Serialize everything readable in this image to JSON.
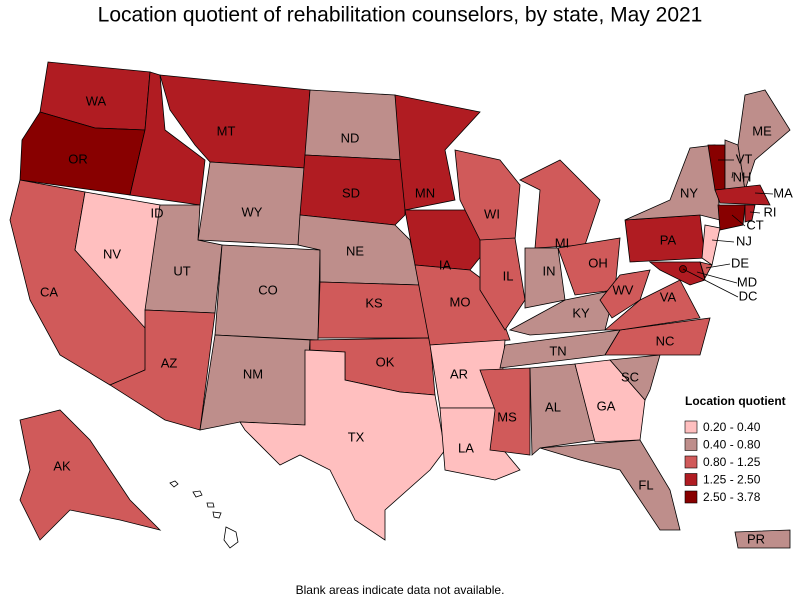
{
  "title": "Location quotient of rehabilitation counselors, by state, May 2021",
  "footnote": "Blank areas indicate data not available.",
  "legend": {
    "title": "Location quotient",
    "items": [
      {
        "label": "0.20 - 0.40",
        "color": "#ffbfbf"
      },
      {
        "label": "0.40 - 0.80",
        "color": "#be8e8b"
      },
      {
        "label": "0.80 - 1.25",
        "color": "#d05a5a"
      },
      {
        "label": "1.25 - 2.50",
        "color": "#b01c22"
      },
      {
        "label": "2.50 - 3.78",
        "color": "#880000"
      }
    ]
  },
  "states": [
    {
      "label": "WA",
      "range": "1.25 - 2.50"
    },
    {
      "label": "OR",
      "range": "2.50 - 3.78"
    },
    {
      "label": "CA",
      "range": "0.80 - 1.25"
    },
    {
      "label": "NV",
      "range": "0.20 - 0.40"
    },
    {
      "label": "ID",
      "range": "1.25 - 2.50"
    },
    {
      "label": "MT",
      "range": "1.25 - 2.50"
    },
    {
      "label": "WY",
      "range": "0.40 - 0.80"
    },
    {
      "label": "UT",
      "range": "0.40 - 0.80"
    },
    {
      "label": "AZ",
      "range": "0.80 - 1.25"
    },
    {
      "label": "CO",
      "range": "0.40 - 0.80"
    },
    {
      "label": "NM",
      "range": "0.40 - 0.80"
    },
    {
      "label": "ND",
      "range": "0.40 - 0.80"
    },
    {
      "label": "SD",
      "range": "1.25 - 2.50"
    },
    {
      "label": "NE",
      "range": "0.40 - 0.80"
    },
    {
      "label": "KS",
      "range": "0.80 - 1.25"
    },
    {
      "label": "OK",
      "range": "0.80 - 1.25"
    },
    {
      "label": "TX",
      "range": "0.20 - 0.40"
    },
    {
      "label": "MN",
      "range": "1.25 - 2.50"
    },
    {
      "label": "IA",
      "range": "1.25 - 2.50"
    },
    {
      "label": "MO",
      "range": "0.80 - 1.25"
    },
    {
      "label": "AR",
      "range": "0.20 - 0.40"
    },
    {
      "label": "LA",
      "range": "0.20 - 0.40"
    },
    {
      "label": "WI",
      "range": "0.80 - 1.25"
    },
    {
      "label": "IL",
      "range": "0.80 - 1.25"
    },
    {
      "label": "MI",
      "range": "0.80 - 1.25"
    },
    {
      "label": "IN",
      "range": "0.40 - 0.80"
    },
    {
      "label": "OH",
      "range": "0.80 - 1.25"
    },
    {
      "label": "KY",
      "range": "0.40 - 0.80"
    },
    {
      "label": "TN",
      "range": "0.40 - 0.80"
    },
    {
      "label": "MS",
      "range": "0.80 - 1.25"
    },
    {
      "label": "AL",
      "range": "0.40 - 0.80"
    },
    {
      "label": "GA",
      "range": "0.20 - 0.40"
    },
    {
      "label": "FL",
      "range": "0.40 - 0.80"
    },
    {
      "label": "SC",
      "range": "0.40 - 0.80"
    },
    {
      "label": "NC",
      "range": "0.80 - 1.25"
    },
    {
      "label": "VA",
      "range": "0.80 - 1.25"
    },
    {
      "label": "WV",
      "range": "0.80 - 1.25"
    },
    {
      "label": "PA",
      "range": "1.25 - 2.50"
    },
    {
      "label": "NY",
      "range": "0.40 - 0.80"
    },
    {
      "label": "NJ",
      "range": "0.20 - 0.40"
    },
    {
      "label": "DE",
      "range": "0.80 - 1.25"
    },
    {
      "label": "MD",
      "range": "1.25 - 2.50"
    },
    {
      "label": "DC",
      "range": "2.50 - 3.78"
    },
    {
      "label": "VT",
      "range": "2.50 - 3.78"
    },
    {
      "label": "NH",
      "range": "0.40 - 0.80"
    },
    {
      "label": "ME",
      "range": "0.40 - 0.80"
    },
    {
      "label": "MA",
      "range": "1.25 - 2.50"
    },
    {
      "label": "CT",
      "range": "2.50 - 3.78"
    },
    {
      "label": "RI",
      "range": "1.25 - 2.50"
    },
    {
      "label": "AK",
      "range": "0.80 - 1.25"
    },
    {
      "label": "PR",
      "range": "0.40 - 0.80"
    }
  ]
}
